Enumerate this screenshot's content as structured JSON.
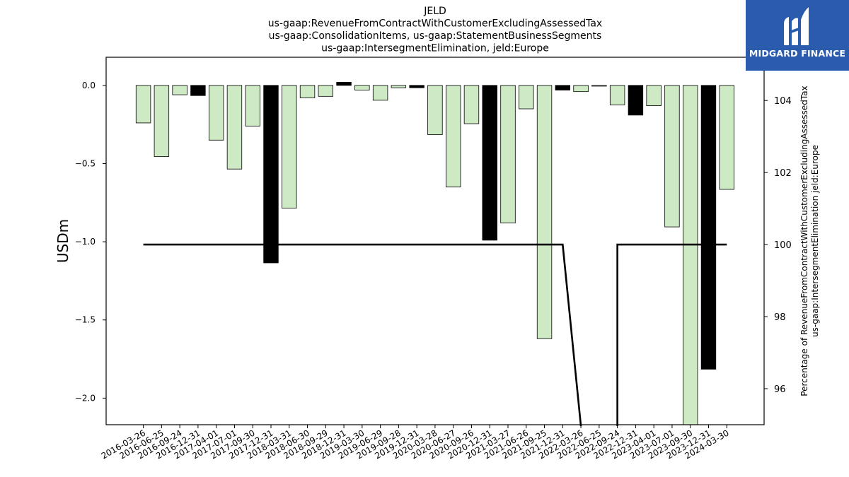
{
  "chart_data": {
    "type": "bar",
    "title": [
      "JELD",
      "us-gaap:RevenueFromContractWithCustomerExcludingAssessedTax",
      "us-gaap:ConsolidationItems, us-gaap:StatementBusinessSegments",
      "us-gaap:IntersegmentElimination, jeld:Europe"
    ],
    "ylabel": "USDm",
    "y2label": [
      "Percentage of RevenueFromContractWithCustomerExcludingAssessedTax",
      "us-gaap:IntersegmentElimination jeld:Europe"
    ],
    "categories": [
      "2016-03-26",
      "2016-06-25",
      "2016-09-24",
      "2016-12-31",
      "2017-04-01",
      "2017-07-01",
      "2017-09-30",
      "2017-12-31",
      "2018-03-31",
      "2018-06-30",
      "2018-09-29",
      "2018-12-31",
      "2019-03-30",
      "2019-06-29",
      "2019-09-28",
      "2019-12-31",
      "2020-03-28",
      "2020-06-27",
      "2020-09-26",
      "2020-12-31",
      "2021-03-27",
      "2021-06-26",
      "2021-09-25",
      "2021-12-31",
      "2022-03-26",
      "2022-06-25",
      "2022-09-24",
      "2022-12-31",
      "2023-04-01",
      "2023-07-01",
      "2023-09-30",
      "2023-12-31",
      "2024-03-30"
    ],
    "values": [
      -0.24,
      -0.455,
      -0.06,
      -0.065,
      -0.35,
      -0.535,
      -0.26,
      -1.135,
      -0.785,
      -0.08,
      -0.07,
      0.02,
      -0.03,
      -0.095,
      -0.015,
      -0.015,
      -0.315,
      -0.65,
      -0.245,
      -0.99,
      -0.88,
      -0.15,
      -1.62,
      -0.03,
      -0.04,
      -0.005,
      -0.125,
      -0.19,
      -0.13,
      -0.905,
      -2.2,
      -1.815,
      -0.665
    ],
    "bar_colors": [
      "light",
      "light",
      "light",
      "dark",
      "light",
      "light",
      "light",
      "dark",
      "light",
      "light",
      "light",
      "dark",
      "light",
      "light",
      "light",
      "dark",
      "light",
      "light",
      "light",
      "dark",
      "light",
      "light",
      "light",
      "dark",
      "light",
      "light",
      "light",
      "dark",
      "light",
      "light",
      "light",
      "dark",
      "light"
    ],
    "line_values": [
      100,
      100,
      100,
      100,
      100,
      100,
      100,
      100,
      100,
      100,
      100,
      100,
      100,
      100,
      100,
      100,
      100,
      100,
      100,
      100,
      100,
      100,
      100,
      100,
      null,
      null,
      100,
      100,
      100,
      100,
      100,
      100,
      100
    ],
    "ylim": [
      -2.17,
      0.18
    ],
    "y_ticks": [
      0.0,
      -0.5,
      -1.0,
      -1.5,
      -2.0
    ],
    "y_tick_labels": [
      "0.0",
      "−0.5",
      "−1.0",
      "−1.5",
      "−2.0"
    ],
    "y2lim": [
      95.0,
      105.2
    ],
    "y2_ticks": [
      96,
      98,
      100,
      102,
      104
    ],
    "y2_tick_labels": [
      "96",
      "98",
      "100",
      "102",
      "104"
    ],
    "colors": {
      "light": "#cdeac5",
      "dark": "#000000",
      "line": "#000000",
      "edge": "#000000"
    },
    "grid": false
  },
  "logo": {
    "text": "MIDGARD FINANCE",
    "icon": "midgard-logo-icon",
    "color": "#2a5bad"
  }
}
